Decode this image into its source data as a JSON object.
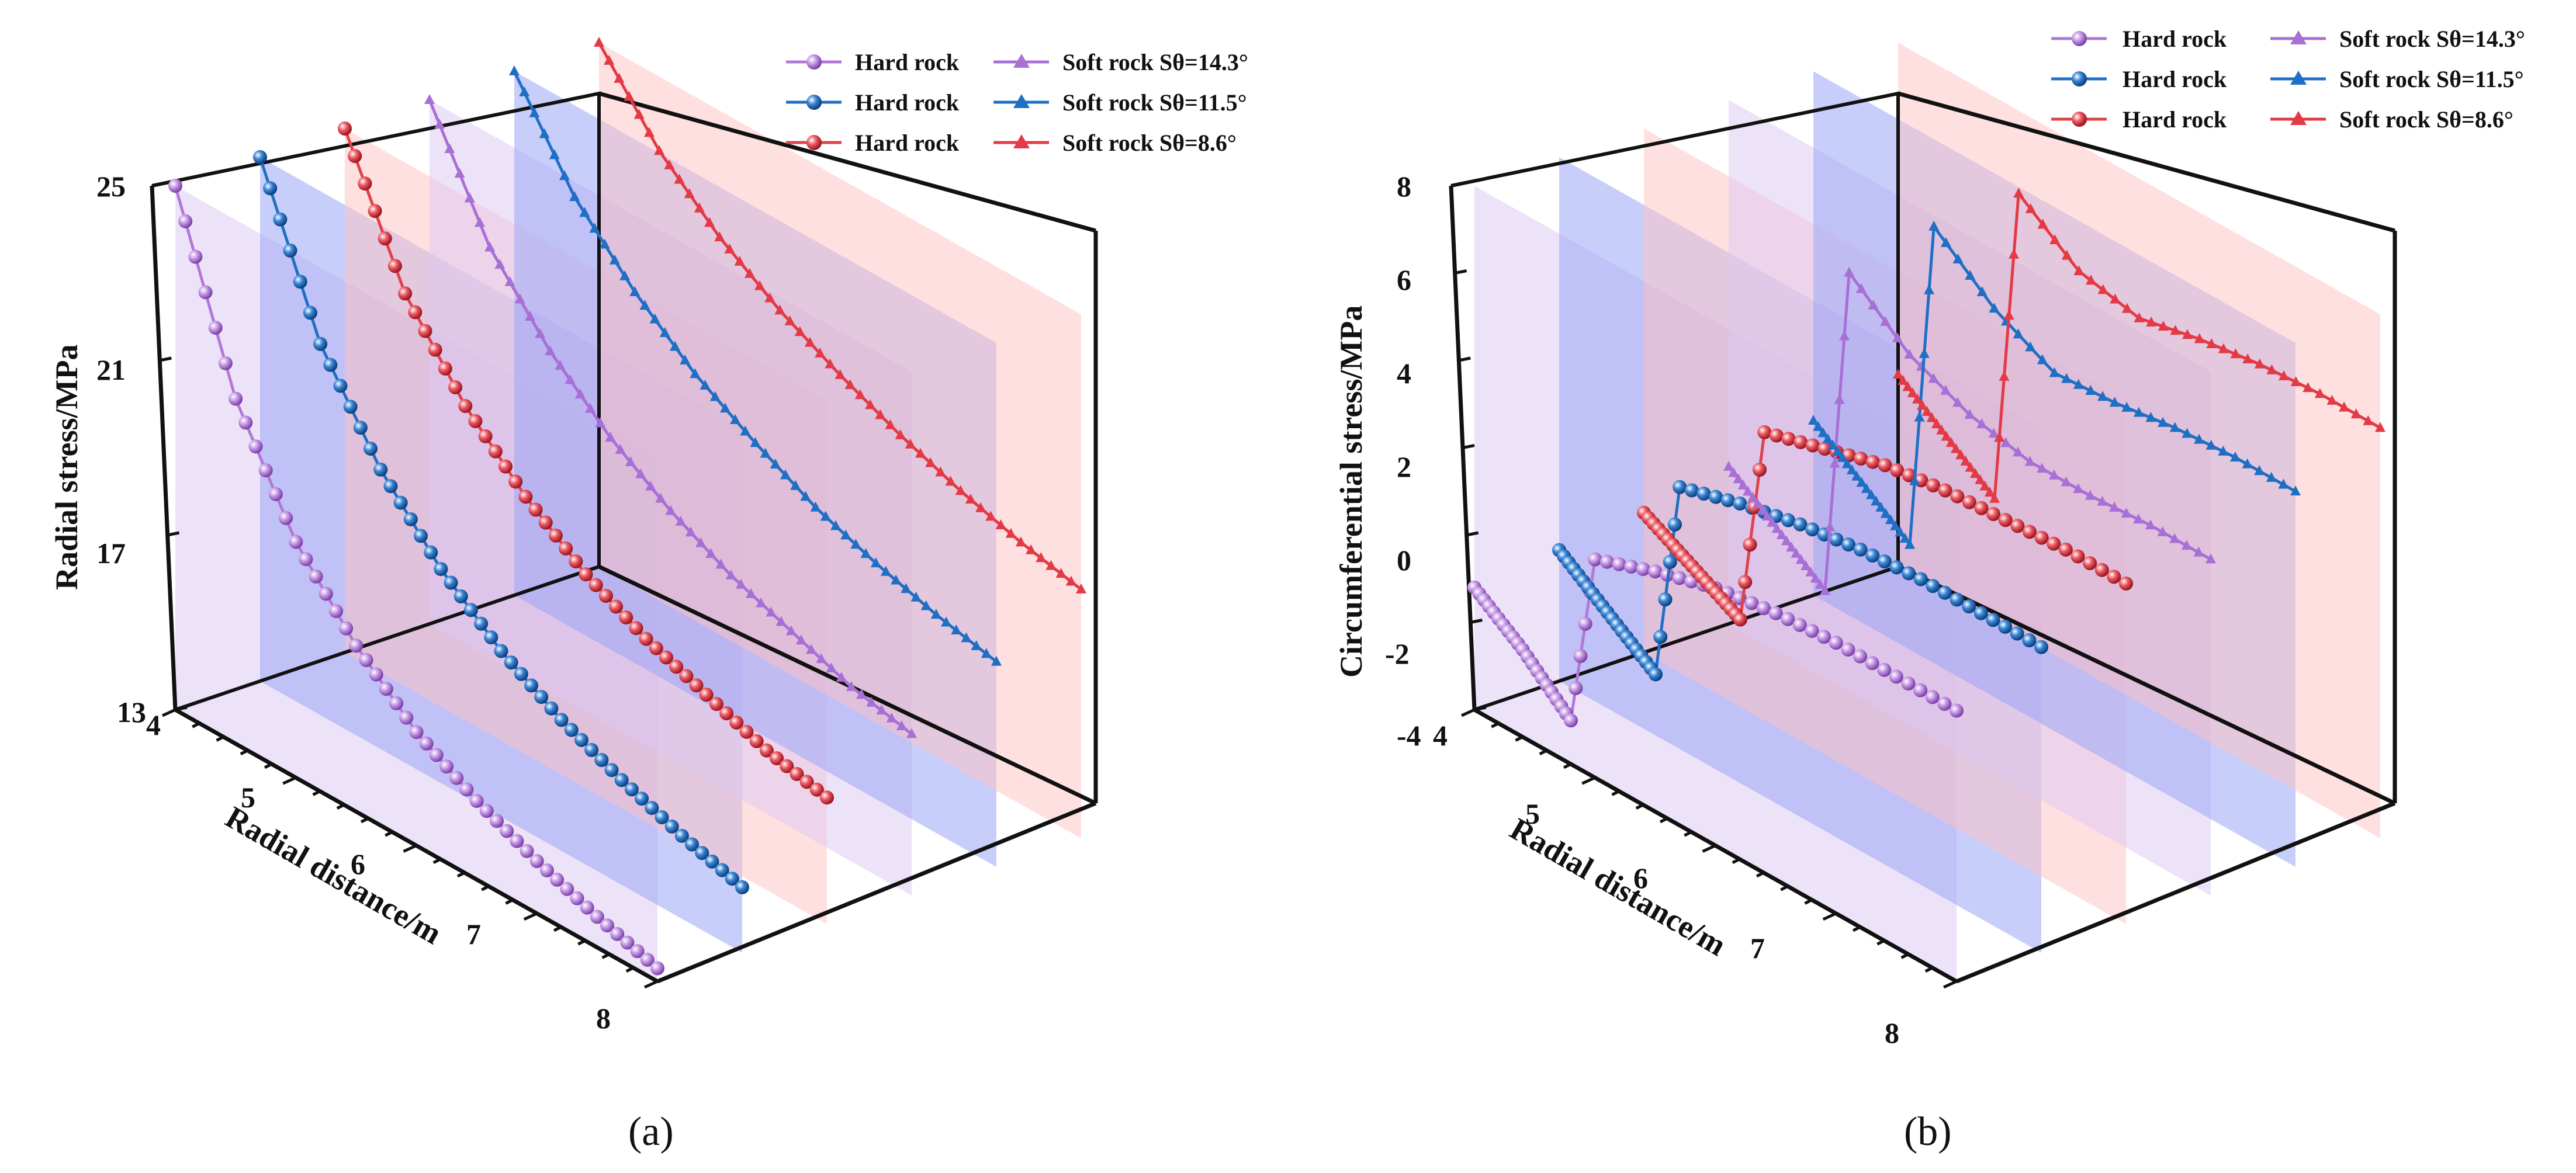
{
  "colors": {
    "hard_purple": "#b278d8",
    "hard_blue": "#1f6fc4",
    "hard_red": "#e0414b",
    "soft_purple": "#a86fd6",
    "soft_blue": "#1f6fc4",
    "soft_red": "#e33a45",
    "plane_purple": "#dcc8f4",
    "plane_blue": "#9aa6f6",
    "plane_red": "#ffc2c2"
  },
  "legend": {
    "row1": {
      "hard": "Hard rock",
      "soft": "Soft rock Sθ=14.3°"
    },
    "row2": {
      "hard": "Hard rock",
      "soft": "Soft rock Sθ=11.5°"
    },
    "row3": {
      "hard": "Hard rock",
      "soft": "Soft rock Sθ=8.6°"
    }
  },
  "chart_data": [
    {
      "id": "a",
      "type": "line",
      "caption": "(a)",
      "ylabel": "Radial stress/MPa",
      "xlabel": "Radial distance/m",
      "y_ticks": [
        "25",
        "21",
        "17",
        "13"
      ],
      "x_ticks": [
        "4",
        "5",
        "6",
        "7",
        "8"
      ],
      "ylim": [
        13,
        25
      ],
      "xlim": [
        4,
        8
      ],
      "series": [
        {
          "name": "Hard rock",
          "condition": "Sθ=14.3°",
          "color": "hard_purple",
          "marker": "sphere",
          "x": [
            4.0,
            4.5,
            5.0,
            5.5,
            6.0,
            6.5,
            7.0,
            7.5,
            8.0
          ],
          "y": [
            25.0,
            20.9,
            18.4,
            16.8,
            15.6,
            14.8,
            14.2,
            13.7,
            13.3
          ]
        },
        {
          "name": "Hard rock",
          "condition": "Sθ=11.5°",
          "color": "hard_blue",
          "marker": "sphere",
          "x": [
            4.0,
            4.5,
            5.0,
            5.5,
            6.0,
            6.5,
            7.0,
            7.5,
            8.0
          ],
          "y": [
            25.0,
            21.5,
            19.4,
            17.9,
            16.8,
            16.0,
            15.4,
            14.9,
            14.5
          ]
        },
        {
          "name": "Hard rock",
          "condition": "Sθ=8.6°",
          "color": "hard_red",
          "marker": "sphere",
          "x": [
            4.0,
            4.5,
            5.0,
            5.5,
            6.0,
            6.5,
            7.0,
            7.5,
            8.0
          ],
          "y": [
            25.0,
            22.0,
            20.2,
            18.9,
            17.9,
            17.2,
            16.7,
            16.2,
            15.9
          ]
        },
        {
          "name": "Soft rock Sθ=14.3°",
          "color": "soft_purple",
          "marker": "triangle",
          "x": [
            4.0,
            4.5,
            5.0,
            5.5,
            6.0,
            6.5,
            7.0,
            7.5,
            8.0
          ],
          "y": [
            25.0,
            22.4,
            20.8,
            19.6,
            18.7,
            18.0,
            17.5,
            17.0,
            16.7
          ]
        },
        {
          "name": "Soft rock Sθ=11.5°",
          "color": "soft_blue",
          "marker": "triangle",
          "x": [
            4.0,
            4.5,
            5.0,
            5.5,
            6.0,
            6.5,
            7.0,
            7.5,
            8.0
          ],
          "y": [
            25.0,
            22.9,
            21.5,
            20.4,
            19.6,
            18.9,
            18.4,
            18.0,
            17.7
          ]
        },
        {
          "name": "Soft rock Sθ=8.6°",
          "color": "soft_red",
          "marker": "triangle",
          "x": [
            4.0,
            4.5,
            5.0,
            5.5,
            6.0,
            6.5,
            7.0,
            7.5,
            8.0
          ],
          "y": [
            25.0,
            23.3,
            22.1,
            21.2,
            20.5,
            19.9,
            19.4,
            19.0,
            18.7
          ]
        }
      ]
    },
    {
      "id": "b",
      "type": "line",
      "caption": "(b)",
      "ylabel": "Circumferential stress/MPa",
      "xlabel": "Radial distance/m",
      "y_ticks": [
        "8",
        "6",
        "4",
        "2",
        "0",
        "-2",
        "-4"
      ],
      "x_ticks": [
        "4",
        "5",
        "6",
        "7",
        "8"
      ],
      "ylim": [
        -4,
        8
      ],
      "xlim": [
        4,
        8
      ],
      "series": [
        {
          "name": "Hard rock",
          "condition": "Sθ=14.3°",
          "color": "hard_purple",
          "marker": "sphere",
          "x": [
            4.0,
            4.2,
            4.4,
            4.6,
            4.8,
            5.0,
            5.5,
            6.0,
            6.5,
            7.0,
            7.5,
            8.0
          ],
          "y": [
            -1.2,
            -1.6,
            -2.0,
            -2.5,
            -3.0,
            1.0,
            1.5,
            1.9,
            2.1,
            2.2,
            2.2,
            2.2
          ]
        },
        {
          "name": "Hard rock",
          "condition": "Sθ=11.5°",
          "color": "hard_blue",
          "marker": "sphere",
          "x": [
            4.0,
            4.2,
            4.4,
            4.6,
            4.8,
            5.0,
            5.5,
            6.0,
            6.5,
            7.0,
            7.5,
            8.0
          ],
          "y": [
            -1.0,
            -1.4,
            -1.8,
            -2.2,
            -2.6,
            2.0,
            2.4,
            2.7,
            2.9,
            3.0,
            3.0,
            3.0
          ]
        },
        {
          "name": "Hard rock",
          "condition": "Sθ=8.6°",
          "color": "hard_red",
          "marker": "sphere",
          "x": [
            4.0,
            4.2,
            4.4,
            4.6,
            4.8,
            5.0,
            5.5,
            6.0,
            6.5,
            7.0,
            7.5,
            8.0
          ],
          "y": [
            -0.8,
            -1.1,
            -1.4,
            -1.7,
            -2.0,
            2.6,
            3.0,
            3.4,
            3.6,
            3.7,
            3.8,
            3.8
          ]
        },
        {
          "name": "Soft rock Sθ=14.3°",
          "color": "soft_purple",
          "marker": "triangle",
          "x": [
            4.0,
            4.2,
            4.4,
            4.6,
            4.8,
            5.0,
            5.5,
            6.0,
            6.5,
            7.0,
            7.5,
            8.0
          ],
          "y": [
            -0.4,
            -0.8,
            -1.2,
            -1.6,
            -2.0,
            5.6,
            4.5,
            3.9,
            3.6,
            3.6,
            3.7,
            3.7
          ]
        },
        {
          "name": "Soft rock Sθ=11.5°",
          "color": "soft_blue",
          "marker": "triangle",
          "x": [
            4.0,
            4.2,
            4.4,
            4.6,
            4.8,
            5.0,
            5.5,
            6.0,
            6.5,
            7.0,
            7.5,
            8.0
          ],
          "y": [
            0.0,
            -0.4,
            -0.8,
            -1.2,
            -1.6,
            6.0,
            4.9,
            4.2,
            4.3,
            4.5,
            4.6,
            4.6
          ]
        },
        {
          "name": "Soft rock Sθ=8.6°",
          "color": "soft_red",
          "marker": "triangle",
          "x": [
            4.0,
            4.2,
            4.4,
            4.6,
            4.8,
            5.0,
            5.5,
            6.0,
            6.5,
            7.0,
            7.5,
            8.0
          ],
          "y": [
            0.4,
            0.0,
            -0.4,
            -0.8,
            -1.2,
            6.1,
            5.1,
            4.8,
            5.1,
            5.3,
            5.4,
            5.4
          ]
        }
      ]
    }
  ]
}
